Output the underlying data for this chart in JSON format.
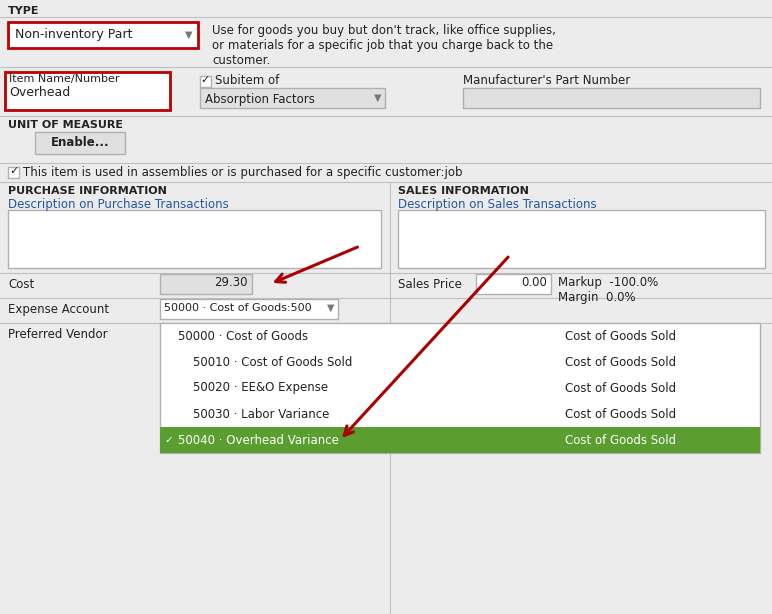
{
  "bg_color": "#ececec",
  "white": "#ffffff",
  "light_gray": "#e0e0e0",
  "mid_gray": "#b0b0b0",
  "dark_gray": "#777777",
  "green_highlight": "#5a9e2f",
  "red_border": "#bb0000",
  "arrow_color": "#aa0000",
  "text_dark": "#222222",
  "text_blue": "#2255aa",
  "label_bold": "#222222",
  "separator": "#c0c0c0",
  "type_label": "TYPE",
  "type_dropdown": "Non-inventory Part",
  "type_description": "Use for goods you buy but don't track, like office supplies,\nor materials for a specific job that you charge back to the\ncustomer.",
  "item_name_label": "Item Name/Number",
  "item_name_value": "Overhead",
  "subitem_label": "Subitem of",
  "subitem_value": "Absorption Factors",
  "manuf_label": "Manufacturer's Part Number",
  "unit_label": "UNIT OF MEASURE",
  "enable_btn": "Enable...",
  "checkbox_text": "This item is used in assemblies or is purchased for a specific customer:job",
  "purchase_header": "PURCHASE INFORMATION",
  "purchase_desc_label": "Description on Purchase Transactions",
  "cost_label": "Cost",
  "cost_value": "29.30",
  "expense_label": "Expense Account",
  "expense_value": "50000 · Cost of Goods:500",
  "vendor_label": "Preferred Vendor",
  "sales_header": "SALES INFORMATION",
  "sales_desc_label": "Description on Sales Transactions",
  "sales_price_label": "Sales Price",
  "sales_price_value": "0.00",
  "markup_text": "Markup  -100.0%\nMargin  0.0%",
  "dropdown_items": [
    "50000 · Cost of Goods",
    "    50010 · Cost of Goods Sold",
    "    50020 · EE&O Expense",
    "    50030 · Labor Variance",
    "50040 · Overhead Variance"
  ],
  "dropdown_right": [
    "Cost of Goods Sold",
    "Cost of Goods Sold",
    "Cost of Goods Sold",
    "Cost of Goods Sold",
    "Cost of Goods Sold"
  ],
  "highlighted_row": 4,
  "figw": 7.72,
  "figh": 6.14,
  "dpi": 100
}
